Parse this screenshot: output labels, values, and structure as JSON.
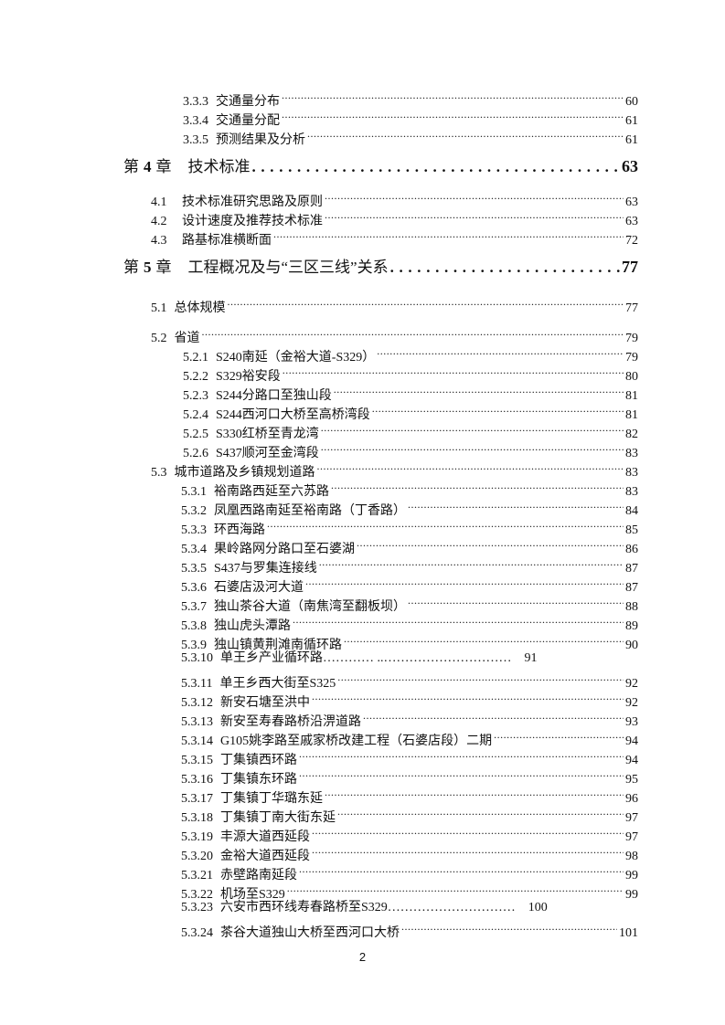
{
  "toc": {
    "top_entries": [
      {
        "num": "3.3.3",
        "title": "交通量分布",
        "page": "60"
      },
      {
        "num": "3.3.4",
        "title": "交通量分配",
        "page": "61"
      },
      {
        "num": "3.3.5",
        "title": "预测结果及分析",
        "page": "61"
      }
    ],
    "chapter4": {
      "prefix": "第",
      "number": "4",
      "suffix": "章",
      "title": "技术标准",
      "page": "63"
    },
    "chapter4_entries": [
      {
        "num": "4.1",
        "title": "技术标准研究思路及原则",
        "page": "63"
      },
      {
        "num": "4.2",
        "title": "设计速度及推荐技术标准",
        "page": "63"
      },
      {
        "num": "4.3",
        "title": "路基标准横断面",
        "page": "72"
      }
    ],
    "chapter5": {
      "prefix": "第",
      "number": "5",
      "suffix": "章",
      "title": "工程概况及与“三区三线”关系",
      "page": "77"
    },
    "s5_1": {
      "num": "5.1",
      "title": "总体规模",
      "page": "77"
    },
    "s5_2": {
      "num": "5.2",
      "title": "省道",
      "page": "79"
    },
    "s5_2_entries": [
      {
        "num": "5.2.1",
        "title": "S240南延（金裕大道-S329）",
        "page": "79"
      },
      {
        "num": "5.2.2",
        "title": "S329裕安段",
        "page": "80"
      },
      {
        "num": "5.2.3",
        "title": "S244分路口至独山段",
        "page": "81"
      },
      {
        "num": "5.2.4",
        "title": "S244西河口大桥至高桥湾段",
        "page": "81"
      },
      {
        "num": "5.2.5",
        "title": "S330红桥至青龙湾",
        "page": "82"
      },
      {
        "num": "5.2.6",
        "title": "S437顺河至金湾段",
        "page": "83"
      }
    ],
    "s5_3": {
      "num": "5.3",
      "title": "城市道路及乡镇规划道路",
      "page": "83"
    },
    "s5_3_entries": [
      {
        "num": "5.3.1",
        "title": "裕南路西延至六苏路",
        "page": "83"
      },
      {
        "num": "5.3.2",
        "title": "凤凰西路南延至裕南路（丁香路）",
        "page": "84"
      },
      {
        "num": "5.3.3",
        "title": "环西海路",
        "page": "85"
      },
      {
        "num": "5.3.4",
        "title": "果岭路网分路口至石婆湖",
        "page": "86"
      },
      {
        "num": "5.3.5",
        "title": "S437与罗集连接线",
        "page": "87"
      },
      {
        "num": "5.3.6",
        "title": "石婆店汲河大道",
        "page": "87"
      },
      {
        "num": "5.3.7",
        "title": "独山茶谷大道（南焦湾至翻板坝）",
        "page": "88"
      },
      {
        "num": "5.3.8",
        "title": "独山虎头潭路",
        "page": "89"
      },
      {
        "num": "5.3.9",
        "title": "独山镇黄荆滩南循环路",
        "page": "90"
      },
      {
        "num": "5.3.10",
        "title": "单王乡产业循环路",
        "leader": "………… ..…………………………",
        "page": "91"
      },
      {
        "num": "5.3.11",
        "title": "单王乡西大街至S325",
        "page": "92"
      },
      {
        "num": "5.3.12",
        "title": "新安石塘至洪中",
        "page": "92"
      },
      {
        "num": "5.3.13",
        "title": "新安至寿春路桥沿淠道路",
        "page": "93"
      },
      {
        "num": "5.3.14",
        "title": "G105姚李路至戚家桥改建工程（石婆店段）二期",
        "page": "94"
      },
      {
        "num": "5.3.15",
        "title": "丁集镇西环路",
        "page": "94"
      },
      {
        "num": "5.3.16",
        "title": "丁集镇东环路",
        "page": "95"
      },
      {
        "num": "5.3.17",
        "title": "丁集镇丁华璐东延",
        "page": "96"
      },
      {
        "num": "5.3.18",
        "title": "丁集镇丁南大街东延",
        "page": "97"
      },
      {
        "num": "5.3.19",
        "title": "丰源大道西延段",
        "page": "97"
      },
      {
        "num": "5.3.20",
        "title": "金裕大道西延段",
        "page": "98"
      },
      {
        "num": "5.3.21",
        "title": "赤壁路南延段",
        "page": "99"
      },
      {
        "num": "5.3.22",
        "title": "机场至S329",
        "page": "99"
      },
      {
        "num": "5.3.23",
        "title": "六安市西环线寿春路桥至S329",
        "leader": "…………………………",
        "page": "100"
      },
      {
        "num": "5.3.24",
        "title": "茶谷大道独山大桥至西河口大桥",
        "page": "101"
      }
    ]
  },
  "footer": {
    "page_number": "2"
  }
}
